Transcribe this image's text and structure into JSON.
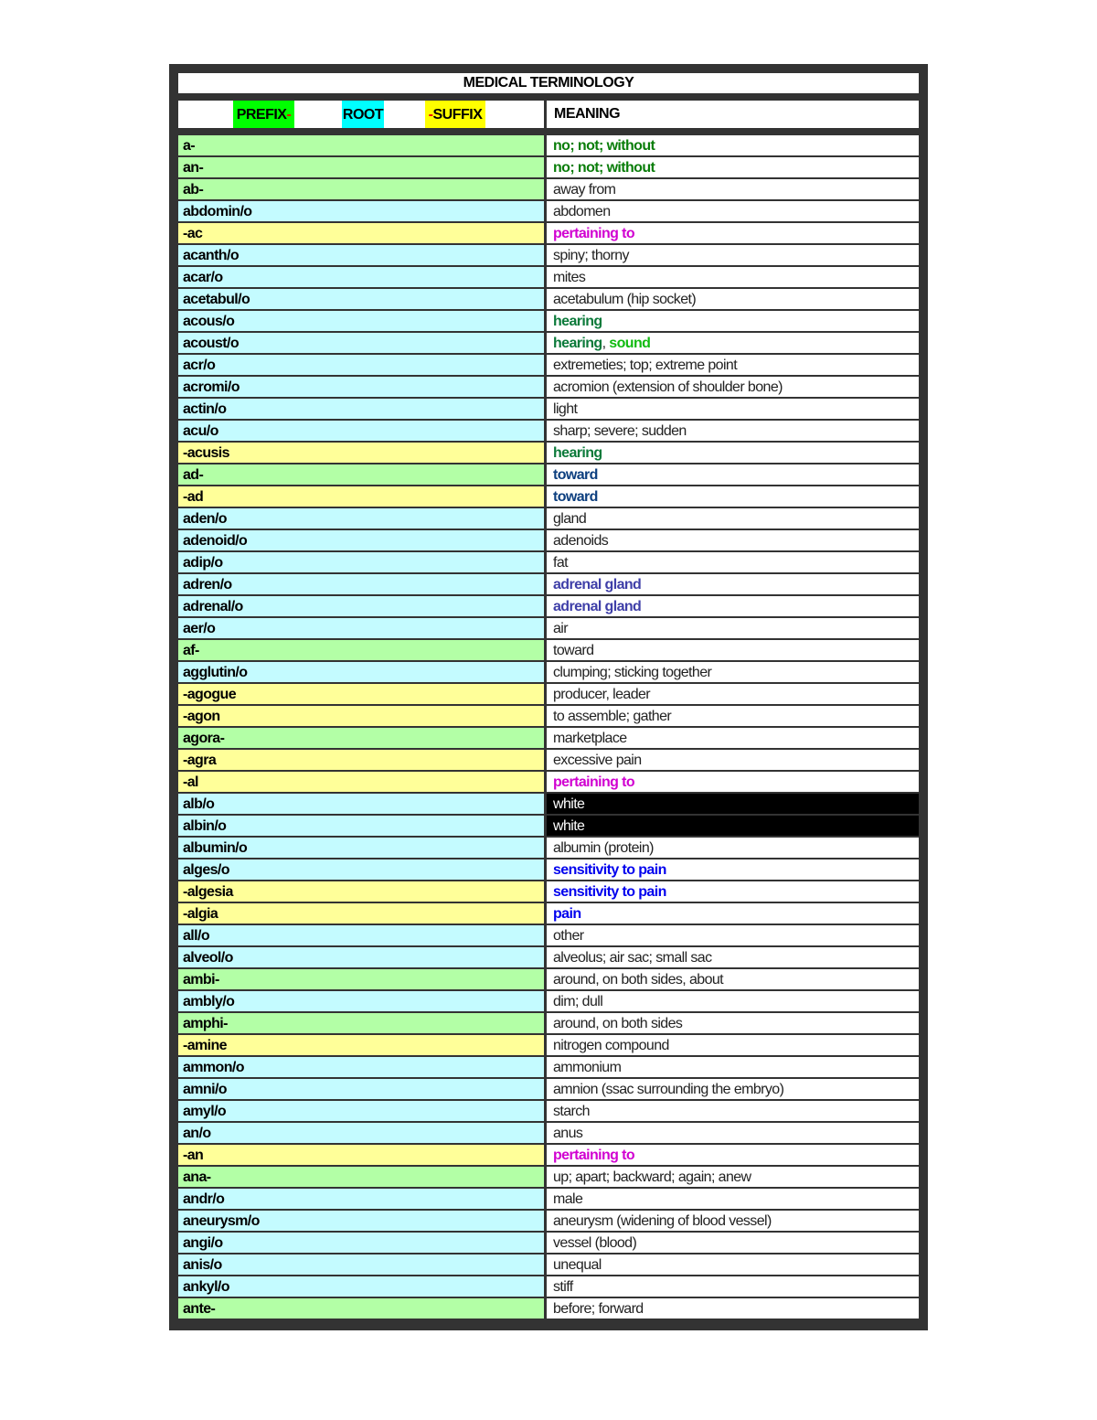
{
  "title": "MEDICAL TERMINOLOGY",
  "legend": {
    "prefix": "PREFIX",
    "prefix_dash": "-",
    "root": "ROOT",
    "suffix_dash": "-",
    "suffix": "SUFFIX",
    "meaning": "MEANING",
    "colors": {
      "prefix": "#00ff00",
      "root": "#00ffff",
      "suffix": "#ffff00",
      "prefix_row": "#b3ffa6",
      "root_row": "#c4fbff",
      "suffix_row": "#ffff99"
    }
  },
  "rows": [
    {
      "term": "a-",
      "type": "prefix",
      "meaning": [
        {
          "t": "no; not; without",
          "c": "green"
        }
      ]
    },
    {
      "term": "an-",
      "type": "prefix",
      "meaning": [
        {
          "t": "no; not; without",
          "c": "green"
        }
      ]
    },
    {
      "term": "ab-",
      "type": "prefix",
      "meaning": [
        {
          "t": "away from"
        }
      ]
    },
    {
      "term": "abdomin/o",
      "type": "root",
      "meaning": [
        {
          "t": "abdomen"
        }
      ]
    },
    {
      "term": "-ac",
      "type": "suffix",
      "meaning": [
        {
          "t": "pertaining to",
          "c": "pink"
        }
      ]
    },
    {
      "term": "acanth/o",
      "type": "root",
      "meaning": [
        {
          "t": "spiny; thorny"
        }
      ]
    },
    {
      "term": "acar/o",
      "type": "root",
      "meaning": [
        {
          "t": "mites"
        }
      ]
    },
    {
      "term": "acetabul/o",
      "type": "root",
      "meaning": [
        {
          "t": "acetabulum (hip socket)"
        }
      ]
    },
    {
      "term": "acous/o",
      "type": "root",
      "meaning": [
        {
          "t": "hearing",
          "c": "teal"
        }
      ]
    },
    {
      "term": "acoust/o",
      "type": "root",
      "meaning": [
        {
          "t": "hearing",
          "c": "teal"
        },
        {
          "t": ", "
        },
        {
          "t": "sound",
          "c": "lime"
        }
      ]
    },
    {
      "term": "acr/o",
      "type": "root",
      "meaning": [
        {
          "t": "extremeties; top; extreme point"
        }
      ]
    },
    {
      "term": "acromi/o",
      "type": "root",
      "meaning": [
        {
          "t": "acromion (extension of shoulder bone)"
        }
      ]
    },
    {
      "term": "actin/o",
      "type": "root",
      "meaning": [
        {
          "t": "light"
        }
      ]
    },
    {
      "term": "acu/o",
      "type": "root",
      "meaning": [
        {
          "t": "sharp; severe; sudden"
        }
      ]
    },
    {
      "term": "-acusis",
      "type": "suffix",
      "meaning": [
        {
          "t": "hearing",
          "c": "teal"
        }
      ]
    },
    {
      "term": "ad-",
      "type": "prefix",
      "meaning": [
        {
          "t": "toward",
          "c": "navy"
        }
      ]
    },
    {
      "term": "-ad",
      "type": "suffix",
      "meaning": [
        {
          "t": "toward",
          "c": "navy"
        }
      ]
    },
    {
      "term": "aden/o",
      "type": "root",
      "meaning": [
        {
          "t": "gland"
        }
      ]
    },
    {
      "term": "adenoid/o",
      "type": "root",
      "meaning": [
        {
          "t": "adenoids"
        }
      ]
    },
    {
      "term": "adip/o",
      "type": "root",
      "meaning": [
        {
          "t": "fat"
        }
      ]
    },
    {
      "term": "adren/o",
      "type": "root",
      "meaning": [
        {
          "t": "adrenal gland",
          "c": "purple"
        }
      ]
    },
    {
      "term": "adrenal/o",
      "type": "root",
      "meaning": [
        {
          "t": "adrenal gland",
          "c": "purple"
        }
      ]
    },
    {
      "term": "aer/o",
      "type": "root",
      "meaning": [
        {
          "t": "air"
        }
      ]
    },
    {
      "term": "af-",
      "type": "prefix",
      "meaning": [
        {
          "t": "toward"
        }
      ]
    },
    {
      "term": "agglutin/o",
      "type": "root",
      "meaning": [
        {
          "t": "clumping; sticking together"
        }
      ]
    },
    {
      "term": "-agogue",
      "type": "suffix",
      "meaning": [
        {
          "t": "producer, leader"
        }
      ]
    },
    {
      "term": "-agon",
      "type": "suffix",
      "meaning": [
        {
          "t": "to assemble; gather"
        }
      ]
    },
    {
      "term": "agora-",
      "type": "prefix",
      "meaning": [
        {
          "t": "marketplace"
        }
      ]
    },
    {
      "term": "-agra",
      "type": "suffix",
      "meaning": [
        {
          "t": "excessive pain"
        }
      ]
    },
    {
      "term": "-al",
      "type": "suffix",
      "meaning": [
        {
          "t": "pertaining to",
          "c": "pink"
        }
      ]
    },
    {
      "term": "alb/o",
      "type": "root",
      "highlight": "black",
      "meaning": [
        {
          "t": "white",
          "c": "white"
        }
      ]
    },
    {
      "term": "albin/o",
      "type": "root",
      "highlight": "black",
      "meaning": [
        {
          "t": "white",
          "c": "white"
        }
      ]
    },
    {
      "term": "albumin/o",
      "type": "root",
      "meaning": [
        {
          "t": "albumin (protein)"
        }
      ]
    },
    {
      "term": "alges/o",
      "type": "root",
      "meaning": [
        {
          "t": "sensitivity to pain",
          "c": "blue"
        }
      ]
    },
    {
      "term": "-algesia",
      "type": "suffix",
      "meaning": [
        {
          "t": "sensitivity to pain",
          "c": "blue"
        }
      ]
    },
    {
      "term": "-algia",
      "type": "suffix",
      "meaning": [
        {
          "t": "pain",
          "c": "blue"
        }
      ]
    },
    {
      "term": "all/o",
      "type": "root",
      "meaning": [
        {
          "t": "other"
        }
      ]
    },
    {
      "term": "alveol/o",
      "type": "root",
      "meaning": [
        {
          "t": "alveolus; air sac; small sac"
        }
      ]
    },
    {
      "term": "ambi-",
      "type": "prefix",
      "meaning": [
        {
          "t": "around, on both sides, about"
        }
      ]
    },
    {
      "term": "ambly/o",
      "type": "root",
      "meaning": [
        {
          "t": "dim; dull"
        }
      ]
    },
    {
      "term": "amphi-",
      "type": "prefix",
      "meaning": [
        {
          "t": "around, on both sides"
        }
      ]
    },
    {
      "term": "-amine",
      "type": "suffix",
      "meaning": [
        {
          "t": "nitrogen compound"
        }
      ]
    },
    {
      "term": "ammon/o",
      "type": "root",
      "meaning": [
        {
          "t": "ammonium"
        }
      ]
    },
    {
      "term": "amni/o",
      "type": "root",
      "meaning": [
        {
          "t": "amnion (ssac surrounding the embryo)"
        }
      ]
    },
    {
      "term": "amyl/o",
      "type": "root",
      "meaning": [
        {
          "t": "starch"
        }
      ]
    },
    {
      "term": "an/o",
      "type": "root",
      "meaning": [
        {
          "t": "anus"
        }
      ]
    },
    {
      "term": "-an",
      "type": "suffix",
      "meaning": [
        {
          "t": "pertaining to",
          "c": "pink"
        }
      ]
    },
    {
      "term": "ana-",
      "type": "prefix",
      "meaning": [
        {
          "t": "up; apart; backward; again; anew"
        }
      ]
    },
    {
      "term": "andr/o",
      "type": "root",
      "meaning": [
        {
          "t": "male"
        }
      ]
    },
    {
      "term": "aneurysm/o",
      "type": "root",
      "meaning": [
        {
          "t": "aneurysm (widening of blood vessel)"
        }
      ]
    },
    {
      "term": "angi/o",
      "type": "root",
      "meaning": [
        {
          "t": "vessel (blood)"
        }
      ]
    },
    {
      "term": "anis/o",
      "type": "root",
      "meaning": [
        {
          "t": "unequal"
        }
      ]
    },
    {
      "term": "ankyl/o",
      "type": "root",
      "meaning": [
        {
          "t": "stiff"
        }
      ]
    },
    {
      "term": "ante-",
      "type": "prefix",
      "meaning": [
        {
          "t": "before; forward"
        }
      ]
    }
  ]
}
